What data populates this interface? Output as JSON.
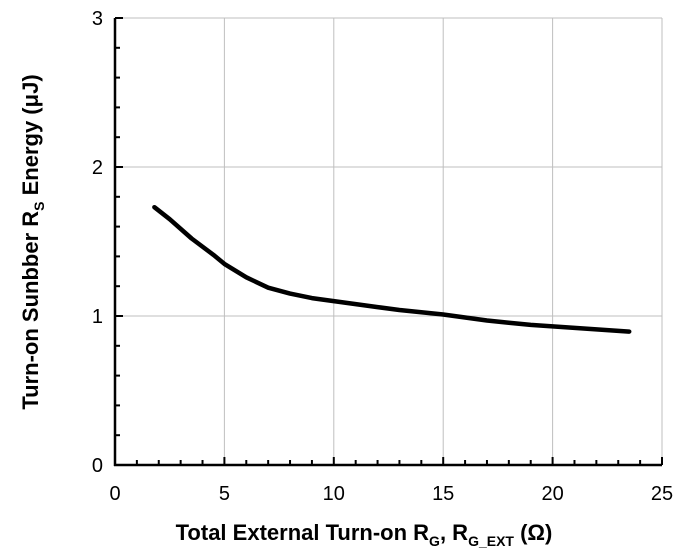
{
  "chart_data": {
    "type": "line",
    "title": "",
    "xlabel": {
      "main": "Total External Turn-on R",
      "sub1": "G",
      "mid": ", R",
      "sub2": "G_EXT",
      "unit": " (Ω)"
    },
    "ylabel": {
      "main": "Turn-on Sunbber R",
      "sub": "S",
      "rest": " Energy (μJ)"
    },
    "xlim": [
      0,
      25
    ],
    "ylim": [
      0,
      3
    ],
    "xticks": [
      "0",
      "5",
      "10",
      "15",
      "20",
      "25"
    ],
    "yticks": [
      "0",
      "1",
      "2",
      "3"
    ],
    "grid": true,
    "legend": "none",
    "colors": {
      "line": "#000000",
      "grid": "#bfbfbf",
      "axis": "#000000"
    },
    "series": [
      {
        "x": [
          1.8,
          2.5,
          3.5,
          4.5,
          5.0,
          6.0,
          7.0,
          8.0,
          9.0,
          10.0,
          11.0,
          12.0,
          13.0,
          14.0,
          15.0,
          16.0,
          17.0,
          18.0,
          19.0,
          20.0,
          21.0,
          22.0,
          23.5
        ],
        "y": [
          1.73,
          1.65,
          1.52,
          1.41,
          1.35,
          1.26,
          1.19,
          1.15,
          1.12,
          1.1,
          1.08,
          1.06,
          1.04,
          1.025,
          1.01,
          0.99,
          0.97,
          0.955,
          0.94,
          0.93,
          0.92,
          0.91,
          0.895
        ]
      }
    ]
  }
}
